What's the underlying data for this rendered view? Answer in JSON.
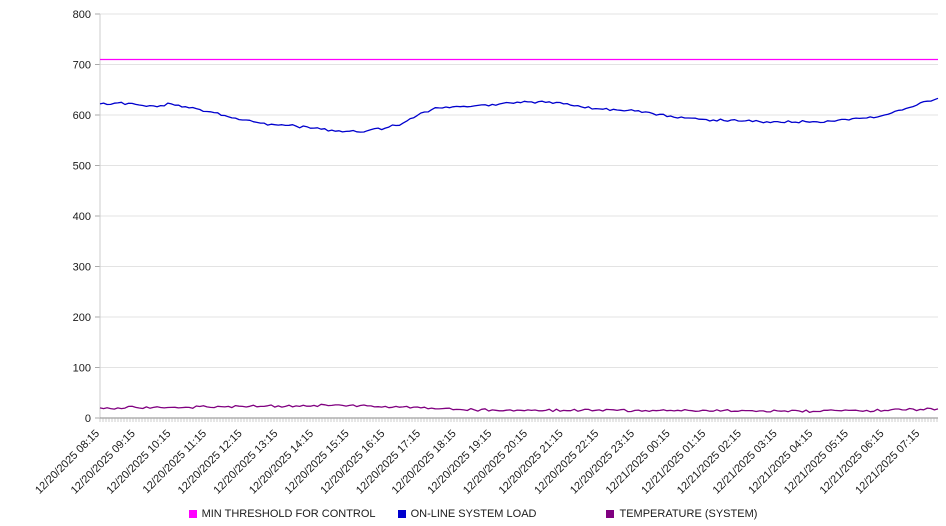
{
  "chart_data": {
    "type": "line",
    "title": "",
    "xlabel": "",
    "ylabel": "",
    "ylim": [
      0,
      800
    ],
    "ytick_interval": 100,
    "grid": "horizontal",
    "legend_position": "bottom-center",
    "points_per_category": 2,
    "categories": [
      "12/20/2025 08:15",
      "12/20/2025 09:15",
      "12/20/2025 10:15",
      "12/20/2025 11:15",
      "12/20/2025 12:15",
      "12/20/2025 13:15",
      "12/20/2025 14:15",
      "12/20/2025 15:15",
      "12/20/2025 16:15",
      "12/20/2025 17:15",
      "12/20/2025 18:15",
      "12/20/2025 19:15",
      "12/20/2025 20:15",
      "12/20/2025 21:15",
      "12/20/2025 22:15",
      "12/20/2025 23:15",
      "12/21/2025 00:15",
      "12/21/2025 01:15",
      "12/21/2025 02:15",
      "12/21/2025 03:15",
      "12/21/2025 04:15",
      "12/21/2025 05:15",
      "12/21/2025 06:15",
      "12/21/2025 07:15"
    ],
    "series": [
      {
        "name": "MIN THRESHOLD FOR CONTROL",
        "color": "#ff00ff",
        "values": [
          710,
          710,
          710,
          710,
          710,
          710,
          710,
          710,
          710,
          710,
          710,
          710,
          710,
          710,
          710,
          710,
          710,
          710,
          710,
          710,
          710,
          710,
          710,
          710,
          710,
          710,
          710,
          710,
          710,
          710,
          710,
          710,
          710,
          710,
          710,
          710,
          710,
          710,
          710,
          710,
          710,
          710,
          710,
          710,
          710,
          710,
          710,
          710
        ]
      },
      {
        "name": "ON-LINE SYSTEM LOAD",
        "color": "#0000cd",
        "values": [
          622,
          624,
          621,
          618,
          622,
          614,
          607,
          599,
          590,
          584,
          580,
          578,
          574,
          570,
          568,
          569,
          574,
          584,
          604,
          614,
          617,
          618,
          621,
          624,
          626,
          625,
          622,
          616,
          612,
          610,
          608,
          603,
          598,
          594,
          591,
          589,
          588,
          587,
          587,
          586,
          587,
          588,
          590,
          594,
          600,
          610,
          624,
          633
        ]
      },
      {
        "name": "TEMPERATURE (SYSTEM)",
        "color": "#800080",
        "values": [
          20,
          20,
          21,
          21,
          21,
          21,
          22,
          22,
          23,
          23,
          24,
          24,
          25,
          25,
          25,
          24,
          23,
          22,
          20,
          18,
          17,
          16,
          16,
          16,
          16,
          15,
          15,
          15,
          16,
          15,
          15,
          15,
          15,
          15,
          15,
          15,
          15,
          14,
          14,
          15,
          13,
          16,
          15,
          15,
          15,
          16,
          17,
          18
        ]
      }
    ],
    "colors": {
      "axis_text": "#1a1a1a",
      "gridline": "#e3e3e3",
      "axis_line": "#888888",
      "minor_tick": "#aaaaaa",
      "background": "#ffffff"
    }
  }
}
